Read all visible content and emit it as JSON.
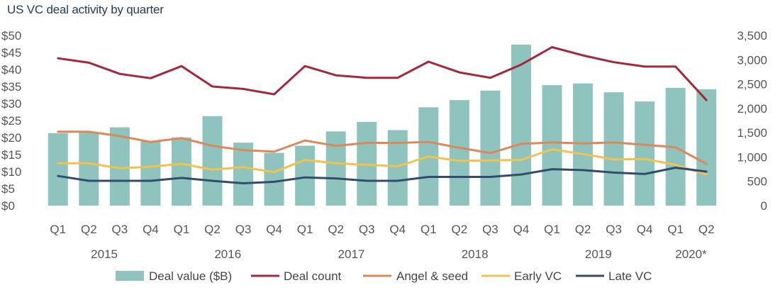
{
  "chart_data": {
    "type": "bar+line",
    "title": "US VC deal activity by quarter",
    "quarters": [
      "Q1",
      "Q2",
      "Q3",
      "Q4",
      "Q1",
      "Q2",
      "Q3",
      "Q4",
      "Q1",
      "Q2",
      "Q3",
      "Q4",
      "Q1",
      "Q2",
      "Q3",
      "Q4",
      "Q1",
      "Q2",
      "Q3",
      "Q4",
      "Q1",
      "Q2"
    ],
    "years": [
      "2015",
      "2016",
      "2017",
      "2018",
      "2019",
      "2020*"
    ],
    "y_left": {
      "min": 0,
      "max": 50,
      "step": 5,
      "ticks": [
        "$0",
        "$5",
        "$10",
        "$15",
        "$20",
        "$25",
        "$30",
        "$35",
        "$40",
        "$45",
        "$50"
      ]
    },
    "y_right": {
      "min": 0,
      "max": 3500,
      "step": 500,
      "ticks": [
        "0",
        "500",
        "1,000",
        "1,500",
        "2,000",
        "2,500",
        "3,000",
        "3,500"
      ]
    },
    "bars": {
      "name": "Deal value ($B)",
      "axis": "left",
      "color": "#8fc3bd",
      "values": [
        21.3,
        21.5,
        23,
        19,
        20,
        26.3,
        18.5,
        15.5,
        17.6,
        21.8,
        24.6,
        22.2,
        28.9,
        31,
        33.8,
        47.3,
        35.4,
        35.9,
        33.3,
        30.6,
        34.6,
        34.2
      ]
    },
    "series": [
      {
        "name": "Deal count",
        "axis": "right",
        "color": "#a3283a",
        "values": [
          3030,
          2940,
          2710,
          2620,
          2870,
          2450,
          2400,
          2290,
          2870,
          2680,
          2630,
          2630,
          2960,
          2740,
          2630,
          2900,
          3260,
          3090,
          2950,
          2860,
          2860,
          2170
        ]
      },
      {
        "name": "Angel & seed",
        "axis": "right",
        "color": "#d9895b",
        "values": [
          1520,
          1520,
          1430,
          1310,
          1390,
          1230,
          1140,
          1110,
          1340,
          1230,
          1290,
          1290,
          1310,
          1190,
          1080,
          1270,
          1300,
          1280,
          1300,
          1250,
          1200,
          860
        ]
      },
      {
        "name": "Early VC",
        "axis": "right",
        "color": "#f1c24e",
        "values": [
          870,
          870,
          770,
          800,
          860,
          740,
          790,
          690,
          940,
          870,
          840,
          810,
          1010,
          920,
          930,
          940,
          1160,
          1060,
          950,
          960,
          840,
          640
        ]
      },
      {
        "name": "Late VC",
        "axis": "right",
        "color": "#324c6b",
        "values": [
          610,
          510,
          510,
          510,
          570,
          510,
          460,
          490,
          580,
          560,
          510,
          510,
          590,
          590,
          590,
          640,
          750,
          730,
          680,
          650,
          780,
          700
        ]
      }
    ],
    "legend": [
      "Deal value ($B)",
      "Deal count",
      "Angel & seed",
      "Early VC",
      "Late VC"
    ],
    "legend_position": "bottom"
  }
}
